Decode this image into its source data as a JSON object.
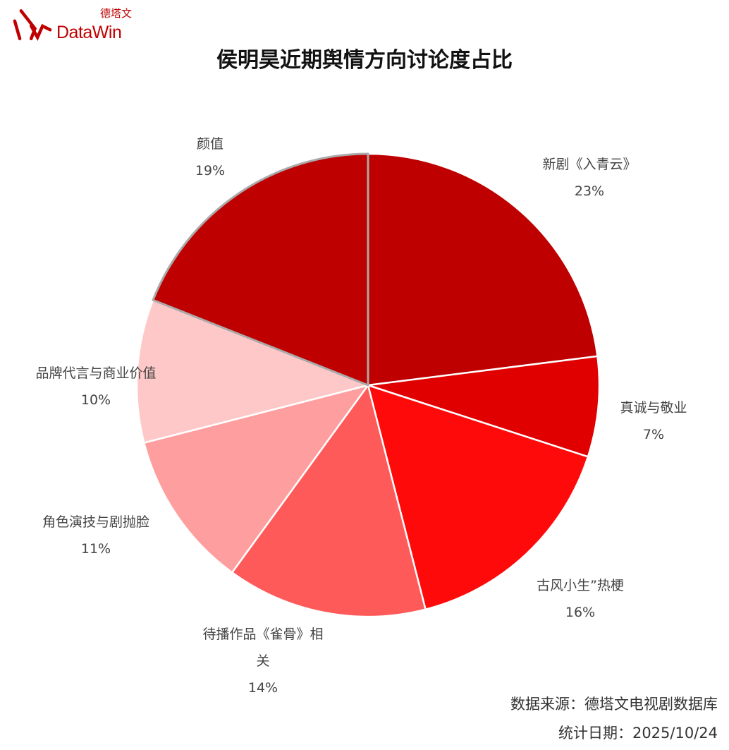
{
  "logo": {
    "cn": "德塔文",
    "en": "DataWin"
  },
  "chart_data": {
    "type": "pie",
    "title": "侯明昊近期舆情方向讨论度占比",
    "start": "top",
    "direction": "clockwise",
    "categories": [
      "新剧《入青云》",
      "真诚与敬业",
      "古风小生”热梗",
      "待播作品《雀骨》相关",
      "角色演技与剧抛脸",
      "品牌代言与商业价值",
      "颜值"
    ],
    "values": [
      23,
      7,
      16,
      14,
      11,
      10,
      19
    ],
    "value_labels": [
      "23%",
      "7%",
      "16%",
      "14%",
      "11%",
      "10%",
      "19%"
    ],
    "colors": [
      "#bf0000",
      "#e00000",
      "#ff0a0a",
      "#ff5a5a",
      "#ff9e9e",
      "#ffc8c8",
      "#bf0000"
    ],
    "highlighted": "颜值"
  },
  "footer": {
    "source": "数据来源：德塔文电视剧数据库",
    "date": "统计日期：2025/10/24"
  }
}
